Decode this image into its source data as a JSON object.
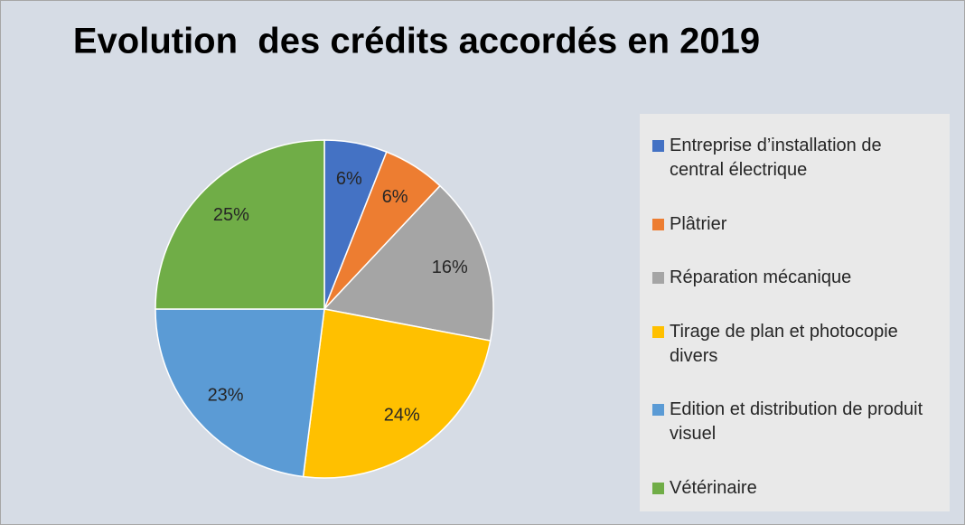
{
  "chart_data": {
    "type": "pie",
    "title": "Evolution  des crédits accordés en 2019",
    "categories": [
      "Entreprise d’installation de central électrique",
      "Plâtrier",
      "Réparation mécanique",
      "Tirage de plan et photocopie divers",
      "Edition et distribution de produit visuel",
      "Vétérinaire"
    ],
    "values": [
      6,
      6,
      16,
      24,
      23,
      25
    ],
    "value_labels": [
      "6%",
      "6%",
      "16%",
      "24%",
      "23%",
      "25%"
    ],
    "colors": [
      "#4472c4",
      "#ed7d31",
      "#a5a5a5",
      "#ffc000",
      "#5b9bd5",
      "#70ad47"
    ],
    "legend": "right"
  }
}
